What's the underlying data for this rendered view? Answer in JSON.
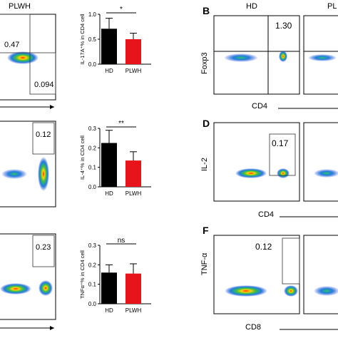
{
  "header_plwh": "PLWH",
  "panel_letters": {
    "b": "B",
    "d": "D",
    "f": "F"
  },
  "left_flow": {
    "top_gates": [
      "0.47",
      "0.094"
    ],
    "mid_gate": "0.12",
    "bottom_gate": "0.23"
  },
  "right_flow": {
    "hd_label": "HD",
    "plwh_label_cut": "PL",
    "b": {
      "xlabel": "CD4",
      "ylabel": "Foxp3",
      "gate": "1.30"
    },
    "d": {
      "xlabel": "CD4",
      "ylabel": "IL-2",
      "gate": "0.17"
    },
    "f": {
      "xlabel": "CD8",
      "ylabel": "TNF-α",
      "gate": "0.12"
    }
  },
  "colors": {
    "hd": "#000000",
    "plwh": "#e8141b"
  },
  "chart_data": [
    {
      "type": "bar",
      "categories": [
        "HD",
        "PLWH"
      ],
      "values": [
        0.71,
        0.5
      ],
      "errors": [
        0.21,
        0.12
      ],
      "ylabel": "IL-17A⁺% in CD4 cell",
      "ylim": [
        0.0,
        1.0
      ],
      "yticks": [
        "0.0",
        "0.5",
        "1.0"
      ],
      "significance": "*"
    },
    {
      "type": "bar",
      "categories": [
        "HD",
        "PLWH"
      ],
      "values": [
        0.225,
        0.135
      ],
      "errors": [
        0.065,
        0.045
      ],
      "ylabel": "IL-4⁺% in CD4 cell",
      "ylim": [
        0.0,
        0.3
      ],
      "yticks": [
        "0.0",
        "0.1",
        "0.2",
        "0.3"
      ],
      "significance": "**"
    },
    {
      "type": "bar",
      "categories": [
        "HD",
        "PLWH"
      ],
      "values": [
        0.16,
        0.155
      ],
      "errors": [
        0.04,
        0.05
      ],
      "ylabel": "TNFα⁺% in CD4 cell",
      "ylim": [
        0.0,
        0.3
      ],
      "yticks": [
        "0.0",
        "0.1",
        "0.2",
        "0.3"
      ],
      "significance": "ns"
    }
  ]
}
